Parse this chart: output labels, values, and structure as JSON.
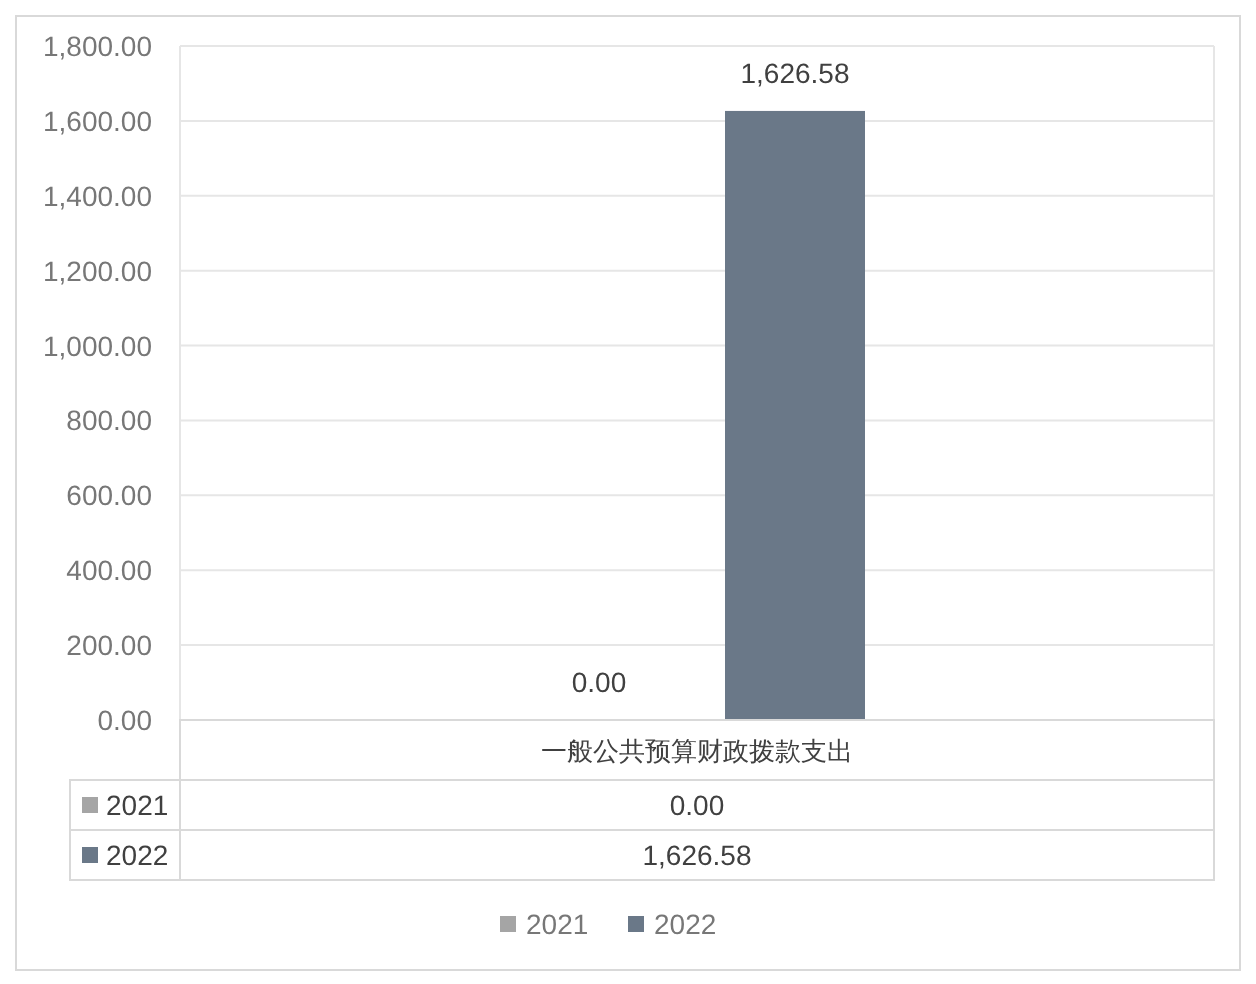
{
  "chart_data": {
    "type": "bar",
    "categories": [
      "一般公共预算财政拨款支出"
    ],
    "series": [
      {
        "name": "2021",
        "color": "#a5a5a5",
        "values": [
          0
        ],
        "value_labels": [
          "0.00"
        ]
      },
      {
        "name": "2022",
        "color": "#6a7888",
        "values": [
          1626.58
        ],
        "value_labels": [
          "1,626.58"
        ]
      }
    ],
    "ylim": [
      0,
      1800
    ],
    "yticks": [
      {
        "value": 0,
        "label": "0.00"
      },
      {
        "value": 200,
        "label": "200.00"
      },
      {
        "value": 400,
        "label": "400.00"
      },
      {
        "value": 600,
        "label": "600.00"
      },
      {
        "value": 800,
        "label": "800.00"
      },
      {
        "value": 1000,
        "label": "1,000.00"
      },
      {
        "value": 1200,
        "label": "1,200.00"
      },
      {
        "value": 1400,
        "label": "1,400.00"
      },
      {
        "value": 1600,
        "label": "1,600.00"
      },
      {
        "value": 1800,
        "label": "1,800.00"
      }
    ],
    "grid": "y",
    "legend": "bottom"
  }
}
